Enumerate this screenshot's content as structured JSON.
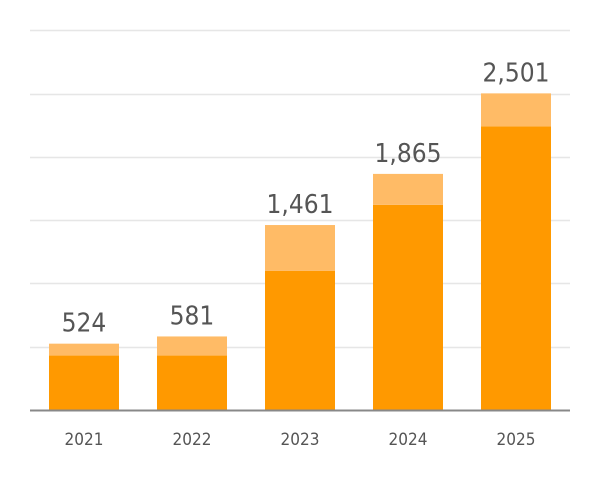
{
  "chart_data": {
    "type": "bar",
    "stacked": true,
    "categories": [
      "2021",
      "2022",
      "2023",
      "2024",
      "2025"
    ],
    "totals": [
      "524",
      "581",
      "1,461",
      "1,865",
      "2,501"
    ],
    "series": [
      {
        "values": [
          430,
          430,
          1100,
          1620,
          2240
        ]
      },
      {
        "values": [
          94,
          151,
          361,
          245,
          261
        ]
      }
    ],
    "ylim": [
      0,
      3000
    ],
    "y_gridlines": [
      0,
      500,
      1000,
      1500,
      2000,
      2500,
      3000
    ],
    "grid": true,
    "colors": {
      "series": [
        "#ff9900",
        "#ffbb66"
      ],
      "grid": "#e6e6e6",
      "baseline": "#888888",
      "text": "#555555"
    }
  }
}
